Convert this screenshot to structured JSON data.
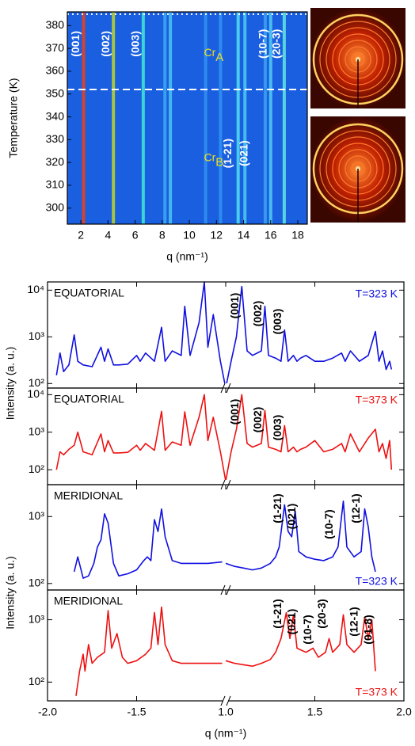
{
  "chart_data": [
    {
      "type": "streak-map",
      "xlabel": "q (nm⁻¹)",
      "ylabel": "Temperature (K)",
      "xlim": [
        1,
        18.7
      ],
      "ylim": [
        293,
        386
      ],
      "xticks": [
        2,
        4,
        6,
        8,
        10,
        12,
        14,
        16,
        18
      ],
      "yticks": [
        300,
        310,
        320,
        330,
        340,
        350,
        360,
        370,
        380
      ],
      "background": "#1a5fe0",
      "transition_T": 352,
      "top_T": 385,
      "streaks": [
        {
          "q": 2.2,
          "color": "#e8401a"
        },
        {
          "q": 4.4,
          "color": "#b8d030"
        },
        {
          "q": 6.6,
          "color": "#40e0d8"
        },
        {
          "q": 8.2,
          "color": "#3aa8f0"
        },
        {
          "q": 8.6,
          "color": "#48c0f0"
        },
        {
          "q": 11.2,
          "color": "#3090f0"
        },
        {
          "q": 12.3,
          "color": "#3090f0"
        },
        {
          "q": 13.6,
          "color": "#50d8f0"
        },
        {
          "q": 14.1,
          "color": "#48c8f0"
        },
        {
          "q": 15.6,
          "color": "#3aa0f0"
        },
        {
          "q": 16.0,
          "color": "#50c8f0"
        },
        {
          "q": 17.0,
          "color": "#60e0e0"
        }
      ],
      "phases": [
        {
          "name": "Cr",
          "subscript": "A",
          "peaks": [
            {
              "label": "(001)",
              "q": 2.2
            },
            {
              "label": "(002)",
              "q": 4.4
            },
            {
              "label": "(003)",
              "q": 6.6
            },
            {
              "label": "(10-7)",
              "q": 16.0
            },
            {
              "label": "(20-3)",
              "q": 17.0
            }
          ]
        },
        {
          "name": "Cr",
          "subscript": "B",
          "peaks": [
            {
              "label": "(1-21)",
              "q": 13.4
            },
            {
              "label": "(021)",
              "q": 14.6
            }
          ]
        }
      ]
    },
    {
      "type": "line",
      "label": "EQUATORIAL",
      "temperature": "T=323 K",
      "log_y": true,
      "xlim": [
        -2.0,
        2.0
      ],
      "xbreak": [
        -1.0,
        1.0
      ],
      "ylim": [
        80,
        15000
      ],
      "yticks": [
        {
          "value": 100,
          "label": "10²"
        },
        {
          "value": 1000,
          "label": "10³"
        },
        {
          "value": 10000,
          "label": "10⁴"
        }
      ],
      "series": [
        {
          "color": "#1010e0",
          "x": [
            -1.95,
            -1.93,
            -1.91,
            -1.88,
            -1.85,
            -1.83,
            -1.8,
            -1.75,
            -1.7,
            -1.68,
            -1.66,
            -1.63,
            -1.6,
            -1.55,
            -1.5,
            -1.48,
            -1.45,
            -1.4,
            -1.36,
            -1.34,
            -1.3,
            -1.25,
            -1.23,
            -1.2,
            -1.15,
            -1.12,
            -1.1,
            -1.07,
            -1.03,
            -1.0,
            1.0,
            1.03,
            1.06,
            1.09,
            1.12,
            1.15,
            1.2,
            1.22,
            1.24,
            1.28,
            1.31,
            1.33,
            1.35,
            1.38,
            1.4,
            1.42,
            1.45,
            1.5,
            1.55,
            1.6,
            1.65,
            1.67,
            1.7,
            1.75,
            1.8,
            1.84,
            1.86,
            1.88,
            1.9,
            1.92,
            1.93
          ],
          "values": [
            150,
            450,
            180,
            250,
            1100,
            300,
            250,
            230,
            600,
            300,
            550,
            250,
            250,
            260,
            400,
            300,
            450,
            300,
            1600,
            300,
            500,
            400,
            4500,
            400,
            2000,
            15000,
            600,
            3000,
            300,
            80,
            80,
            300,
            1000,
            12000,
            500,
            400,
            500,
            4500,
            400,
            350,
            300,
            1400,
            300,
            400,
            300,
            350,
            400,
            300,
            300,
            350,
            450,
            300,
            500,
            300,
            400,
            1300,
            300,
            500,
            200,
            300,
            200
          ]
        }
      ],
      "peaks": [
        {
          "label": "(001)",
          "q": 1.09
        },
        {
          "label": "(002)",
          "q": 1.22
        },
        {
          "label": "(003)",
          "q": 1.33
        }
      ]
    },
    {
      "type": "line",
      "label": "EQUATORIAL",
      "temperature": "T=373 K",
      "log_y": true,
      "ylabel": "Intensity (a. u.)",
      "xlim": [
        -2.0,
        2.0
      ],
      "xbreak": [
        -1.0,
        1.0
      ],
      "ylim": [
        40,
        15000
      ],
      "yticks": [
        {
          "value": 100,
          "label": "10²"
        },
        {
          "value": 1000,
          "label": "10³"
        },
        {
          "value": 10000,
          "label": "10⁴"
        }
      ],
      "series": [
        {
          "color": "#ee1111",
          "x": [
            -1.95,
            -1.93,
            -1.91,
            -1.88,
            -1.85,
            -1.83,
            -1.8,
            -1.75,
            -1.7,
            -1.68,
            -1.66,
            -1.63,
            -1.6,
            -1.55,
            -1.5,
            -1.48,
            -1.45,
            -1.4,
            -1.36,
            -1.34,
            -1.3,
            -1.25,
            -1.23,
            -1.2,
            -1.15,
            -1.12,
            -1.1,
            -1.07,
            -1.03,
            -1.0,
            1.0,
            1.03,
            1.06,
            1.09,
            1.12,
            1.15,
            1.2,
            1.22,
            1.24,
            1.28,
            1.31,
            1.33,
            1.35,
            1.38,
            1.4,
            1.42,
            1.45,
            1.5,
            1.55,
            1.6,
            1.65,
            1.67,
            1.7,
            1.75,
            1.8,
            1.84,
            1.86,
            1.88,
            1.9,
            1.92,
            1.93
          ],
          "values": [
            100,
            300,
            250,
            350,
            450,
            1000,
            300,
            250,
            900,
            300,
            600,
            280,
            280,
            290,
            450,
            330,
            500,
            330,
            3600,
            330,
            550,
            450,
            3500,
            450,
            2500,
            10000,
            600,
            2500,
            300,
            50,
            50,
            300,
            1200,
            10000,
            500,
            400,
            500,
            3800,
            400,
            350,
            300,
            1500,
            300,
            400,
            300,
            350,
            400,
            600,
            300,
            350,
            500,
            300,
            900,
            300,
            700,
            1200,
            300,
            500,
            200,
            600,
            100
          ]
        }
      ],
      "peaks": [
        {
          "label": "(001)",
          "q": 1.09
        },
        {
          "label": "(002)",
          "q": 1.22
        },
        {
          "label": "(003)",
          "q": 1.33
        }
      ]
    },
    {
      "type": "line",
      "label": "MERIDIONAL",
      "temperature": "T=323 K",
      "log_y": true,
      "xlim": [
        -2.0,
        2.0
      ],
      "xbreak": [
        -1.0,
        1.0
      ],
      "ylim": [
        80,
        3000
      ],
      "yticks": [
        {
          "value": 100,
          "label": "10²"
        },
        {
          "value": 1000,
          "label": "10³"
        }
      ],
      "series": [
        {
          "color": "#1010e0",
          "x": [
            -1.85,
            -1.83,
            -1.8,
            -1.77,
            -1.74,
            -1.72,
            -1.7,
            -1.68,
            -1.66,
            -1.63,
            -1.6,
            -1.55,
            -1.5,
            -1.46,
            -1.44,
            -1.42,
            -1.4,
            -1.38,
            -1.36,
            -1.34,
            -1.3,
            -1.25,
            -1.2,
            -1.1,
            -1.02,
            null,
            1.0,
            1.05,
            1.1,
            1.15,
            1.2,
            1.25,
            1.28,
            1.3,
            1.33,
            1.35,
            1.37,
            1.39,
            1.41,
            1.45,
            1.5,
            1.55,
            1.6,
            1.63,
            1.66,
            1.68,
            1.72,
            1.76,
            1.78,
            1.8,
            1.82,
            1.84
          ],
          "values": [
            150,
            250,
            120,
            130,
            200,
            350,
            450,
            1100,
            800,
            200,
            130,
            140,
            160,
            220,
            250,
            220,
            900,
            600,
            1300,
            500,
            220,
            200,
            200,
            200,
            210,
            null,
            200,
            180,
            170,
            160,
            170,
            200,
            250,
            350,
            1500,
            600,
            500,
            1200,
            300,
            250,
            230,
            220,
            250,
            350,
            1700,
            350,
            250,
            300,
            1300,
            700,
            250,
            150
          ]
        }
      ],
      "peaks": [
        {
          "label": "(1-21)",
          "q": 1.33
        },
        {
          "label": "(021)",
          "q": 1.41
        },
        {
          "label": "(10-7)",
          "q": 1.62
        },
        {
          "label": "(12-1)",
          "q": 1.77
        }
      ]
    },
    {
      "type": "line",
      "label": "MERIDIONAL",
      "temperature": "T=373 K",
      "log_y": true,
      "ylabel": "Intensity (a. u.)",
      "xlim": [
        -2.0,
        2.0
      ],
      "xbreak": [
        -1.0,
        1.0
      ],
      "ylim": [
        50,
        3000
      ],
      "yticks": [
        {
          "value": 100,
          "label": "10²"
        },
        {
          "value": 1000,
          "label": "10³"
        }
      ],
      "xlabel": "q (nm⁻¹)",
      "xticks": [
        {
          "value": -2.0,
          "label": "-2.0"
        },
        {
          "value": -1.5,
          "label": "-1.5"
        },
        {
          "value": 1.0,
          "label": "1.0"
        },
        {
          "value": 1.5,
          "label": "1.5"
        },
        {
          "value": 2.0,
          "label": "2.0"
        }
      ],
      "series": [
        {
          "color": "#ee1111",
          "x": [
            -1.84,
            -1.82,
            -1.8,
            -1.79,
            -1.77,
            -1.75,
            -1.72,
            -1.68,
            -1.66,
            -1.64,
            -1.61,
            -1.58,
            -1.55,
            -1.5,
            -1.45,
            -1.42,
            -1.4,
            -1.38,
            -1.36,
            -1.34,
            -1.3,
            -1.25,
            -1.2,
            -1.1,
            -1.02,
            null,
            1.0,
            1.05,
            1.1,
            1.15,
            1.2,
            1.25,
            1.28,
            1.31,
            1.34,
            1.36,
            1.38,
            1.4,
            1.45,
            1.49,
            1.52,
            1.56,
            1.58,
            1.6,
            1.64,
            1.66,
            1.68,
            1.72,
            1.76,
            1.78,
            1.8,
            1.82,
            1.84
          ],
          "values": [
            60,
            150,
            280,
            150,
            400,
            200,
            250,
            300,
            1400,
            350,
            600,
            250,
            200,
            220,
            280,
            350,
            1300,
            400,
            1600,
            400,
            220,
            200,
            200,
            200,
            200,
            null,
            220,
            200,
            190,
            180,
            200,
            230,
            300,
            500,
            1300,
            500,
            1200,
            350,
            300,
            350,
            250,
            300,
            500,
            300,
            400,
            1200,
            400,
            300,
            400,
            1100,
            500,
            1000,
            150
          ]
        }
      ],
      "peaks": [
        {
          "label": "(1-21)",
          "q": 1.33
        },
        {
          "label": "(021)",
          "q": 1.41
        },
        {
          "label": "(10-7)",
          "q": 1.5
        },
        {
          "label": "(20-3)",
          "q": 1.58
        },
        {
          "label": "(12-1)",
          "q": 1.76
        },
        {
          "label": "(01-8)",
          "q": 1.84
        }
      ]
    }
  ]
}
